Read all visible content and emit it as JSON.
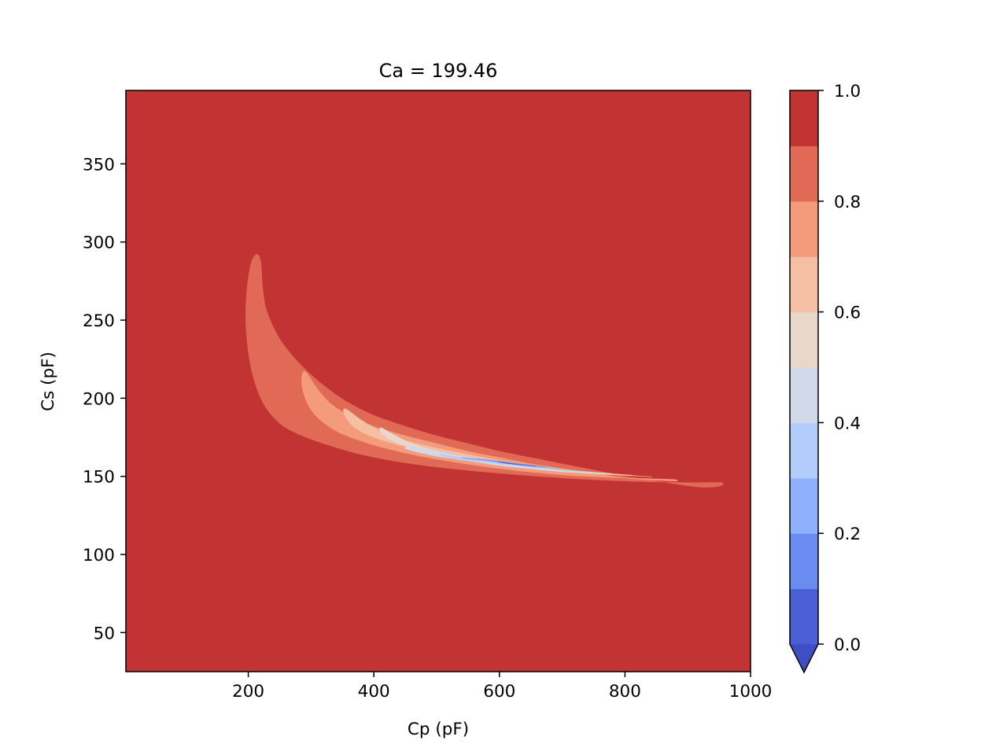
{
  "chart_data": {
    "type": "heatmap",
    "subtype": "filled-contour",
    "title": "Ca = 199.46",
    "xlabel": "Cp (pF)",
    "ylabel": "Cs (pF)",
    "xlim": [
      5,
      1000
    ],
    "ylim": [
      25,
      397
    ],
    "xticks": [
      200,
      400,
      600,
      800,
      1000
    ],
    "xtick_labels": [
      "200",
      "400",
      "600",
      "800",
      "1000"
    ],
    "yticks": [
      50,
      100,
      150,
      200,
      250,
      300,
      350
    ],
    "ytick_labels": [
      "50",
      "100",
      "150",
      "200",
      "250",
      "300",
      "350"
    ],
    "colormap": "coolwarm",
    "background_level": "0.9-1.0",
    "levels": [
      0.0,
      0.1,
      0.2,
      0.3,
      0.4,
      0.5,
      0.6,
      0.7,
      0.8,
      0.9,
      1.0
    ],
    "level_colors": [
      "#4a5fd6",
      "#6a8bef",
      "#8eb0fd",
      "#b3cdfa",
      "#d0d9e7",
      "#e9d7cc",
      "#f5bfa4",
      "#f39b7b",
      "#e06a55",
      "#c23334"
    ],
    "extend_color": "#3e4fc4",
    "colorbar": {
      "ticks": [
        0.0,
        0.2,
        0.4,
        0.6,
        0.8,
        1.0
      ],
      "tick_labels": [
        "0.0",
        "0.2",
        "0.4",
        "0.6",
        "0.8",
        "1.0"
      ],
      "extend": "min"
    },
    "regions": [
      {
        "level": "0.8-0.9",
        "color": "#e06a55",
        "boundary": [
          [
            952,
            144
          ],
          [
            930,
            143
          ],
          [
            900,
            144
          ],
          [
            850,
            147
          ],
          [
            800,
            150
          ],
          [
            750,
            154
          ],
          [
            700,
            158
          ],
          [
            650,
            162
          ],
          [
            600,
            166
          ],
          [
            550,
            171
          ],
          [
            500,
            176
          ],
          [
            450,
            182
          ],
          [
            400,
            189
          ],
          [
            360,
            197
          ],
          [
            330,
            205
          ],
          [
            300,
            215
          ],
          [
            275,
            225
          ],
          [
            250,
            238
          ],
          [
            230,
            255
          ],
          [
            223,
            270
          ],
          [
            220,
            287
          ],
          [
            214,
            292
          ],
          [
            205,
            287
          ],
          [
            198,
            270
          ],
          [
            196,
            250
          ],
          [
            200,
            230
          ],
          [
            209,
            212
          ],
          [
            225,
            196
          ],
          [
            250,
            184
          ],
          [
            280,
            177
          ],
          [
            320,
            171
          ],
          [
            370,
            165
          ],
          [
            430,
            160
          ],
          [
            500,
            156
          ],
          [
            600,
            152
          ],
          [
            700,
            149
          ],
          [
            800,
            147
          ],
          [
            900,
            146
          ],
          [
            952,
            146
          ]
        ]
      },
      {
        "level": "0.7-0.8",
        "color": "#f39b7b",
        "boundary": [
          [
            875,
            147
          ],
          [
            800,
            149
          ],
          [
            750,
            152
          ],
          [
            700,
            155
          ],
          [
            650,
            158
          ],
          [
            600,
            162
          ],
          [
            550,
            166
          ],
          [
            500,
            171
          ],
          [
            450,
            176
          ],
          [
            400,
            182
          ],
          [
            360,
            189
          ],
          [
            330,
            197
          ],
          [
            310,
            206
          ],
          [
            295,
            215
          ],
          [
            288,
            217
          ],
          [
            285,
            212
          ],
          [
            287,
            205
          ],
          [
            295,
            196
          ],
          [
            312,
            187
          ],
          [
            345,
            178
          ],
          [
            400,
            170
          ],
          [
            450,
            165
          ],
          [
            500,
            161
          ],
          [
            600,
            155
          ],
          [
            700,
            151
          ],
          [
            800,
            149
          ],
          [
            875,
            148
          ]
        ]
      },
      {
        "level": "0.6-0.7",
        "color": "#f5bfa4",
        "boundary": [
          [
            830,
            150
          ],
          [
            760,
            152
          ],
          [
            700,
            154
          ],
          [
            650,
            157
          ],
          [
            600,
            160
          ],
          [
            550,
            164
          ],
          [
            500,
            168
          ],
          [
            450,
            173
          ],
          [
            410,
            179
          ],
          [
            380,
            186
          ],
          [
            360,
            192
          ],
          [
            352,
            193
          ],
          [
            355,
            188
          ],
          [
            370,
            181
          ],
          [
            400,
            175
          ],
          [
            450,
            169
          ],
          [
            500,
            165
          ],
          [
            550,
            161
          ],
          [
            600,
            157
          ],
          [
            700,
            153
          ],
          [
            830,
            150
          ]
        ]
      },
      {
        "level": "0.5-0.6",
        "color": "#e9d7cc",
        "boundary": [
          [
            800,
            151
          ],
          [
            700,
            153
          ],
          [
            650,
            156
          ],
          [
            600,
            159
          ],
          [
            550,
            162
          ],
          [
            500,
            166
          ],
          [
            460,
            171
          ],
          [
            430,
            177
          ],
          [
            412,
            181
          ],
          [
            410,
            179
          ],
          [
            420,
            175
          ],
          [
            440,
            171
          ],
          [
            480,
            167
          ],
          [
            550,
            162
          ],
          [
            620,
            158
          ],
          [
            700,
            154
          ],
          [
            800,
            151
          ]
        ]
      },
      {
        "level": "0.4-0.5",
        "color": "#d0d9e7",
        "boundary": [
          [
            770,
            152
          ],
          [
            700,
            154
          ],
          [
            650,
            156
          ],
          [
            600,
            159
          ],
          [
            550,
            162
          ],
          [
            500,
            166
          ],
          [
            460,
            169
          ],
          [
            450,
            168
          ],
          [
            465,
            166
          ],
          [
            500,
            163
          ],
          [
            550,
            160
          ],
          [
            600,
            157
          ],
          [
            650,
            155
          ],
          [
            700,
            153
          ],
          [
            770,
            152
          ]
        ]
      },
      {
        "level": "0.3-0.4",
        "color": "#b3cdfa",
        "boundary": [
          [
            740,
            153
          ],
          [
            700,
            154
          ],
          [
            660,
            156
          ],
          [
            620,
            158
          ],
          [
            580,
            160
          ],
          [
            540,
            162
          ],
          [
            505,
            164
          ],
          [
            520,
            162
          ],
          [
            560,
            160
          ],
          [
            600,
            158
          ],
          [
            650,
            156
          ],
          [
            700,
            154
          ],
          [
            740,
            153
          ]
        ]
      },
      {
        "level": "0.2-0.3",
        "color": "#8eb0fd",
        "boundary": [
          [
            690,
            155
          ],
          [
            650,
            157
          ],
          [
            610,
            159
          ],
          [
            570,
            161
          ],
          [
            540,
            162
          ],
          [
            550,
            161
          ],
          [
            580,
            160
          ],
          [
            620,
            158
          ],
          [
            660,
            156
          ],
          [
            690,
            155
          ]
        ]
      },
      {
        "level": "0.1-0.2",
        "color": "#6a8bef",
        "boundary": [
          [
            670,
            156
          ],
          [
            640,
            157.5
          ],
          [
            610,
            159
          ],
          [
            580,
            160.5
          ],
          [
            565,
            161
          ],
          [
            585,
            160
          ],
          [
            620,
            158
          ],
          [
            650,
            157
          ],
          [
            670,
            156
          ]
        ]
      },
      {
        "level": "0.0-0.1",
        "color": "#4a5fd6",
        "boundary": [
          [
            655,
            156.5
          ],
          [
            635,
            157.5
          ],
          [
            615,
            158.5
          ],
          [
            598,
            159.5
          ],
          [
            608,
            158.5
          ],
          [
            630,
            157.5
          ],
          [
            655,
            156.5
          ]
        ]
      }
    ]
  }
}
